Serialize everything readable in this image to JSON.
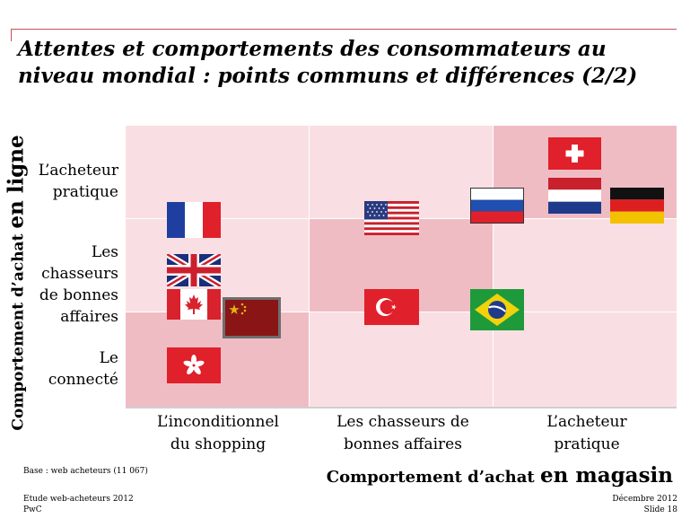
{
  "title_line1": "Attentes et comportements des consommateurs au",
  "title_line2": "niveau mondial : points communs et différences (2/2)",
  "y_axis": {
    "prefix": "Comportement d’achat ",
    "emphasis": "en ligne"
  },
  "x_axis": {
    "prefix": "Comportement d’achat ",
    "emphasis": "en magasin"
  },
  "row_labels": {
    "top": [
      "L’acheteur",
      "pratique"
    ],
    "middle": [
      "Les",
      "chasseurs",
      "de bonnes",
      "affaires"
    ],
    "bottom": [
      "Le",
      "connecté"
    ]
  },
  "column_labels": {
    "left": [
      "L’inconditionnel",
      "du shopping"
    ],
    "center": [
      "Les chasseurs de",
      "bonnes affaires"
    ],
    "right": [
      "L’acheteur",
      "pratique"
    ]
  },
  "highlight_color": "#f0bcc4",
  "background_color": "#f9dfe3",
  "flags": [
    "France",
    "United Kingdom",
    "Canada",
    "China",
    "Hong Kong",
    "United States",
    "Turkey",
    "Russia",
    "Brazil",
    "Switzerland",
    "Netherlands",
    "Germany"
  ],
  "footer": {
    "base": "Base : web acheteurs (11 067)",
    "study": "Etude web-acheteurs 2012",
    "company": "PwC",
    "date": "Décembre 2012",
    "slide": "Slide 18"
  }
}
